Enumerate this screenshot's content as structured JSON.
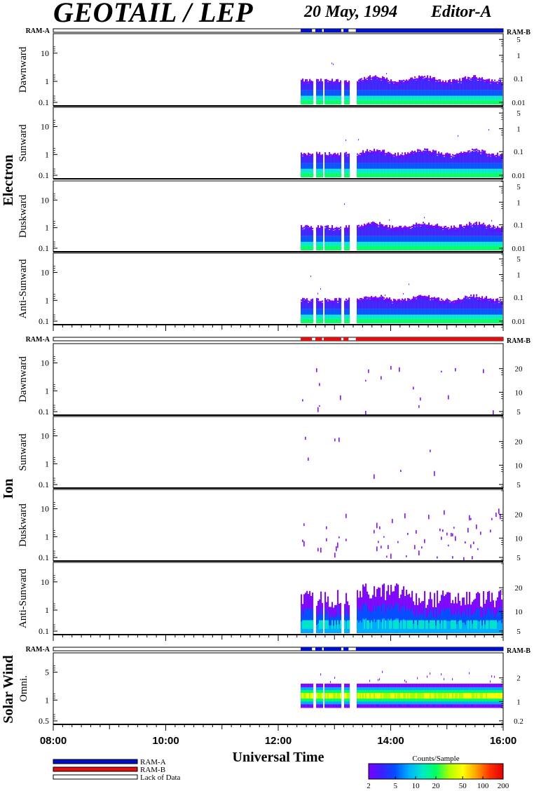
{
  "header": {
    "title": "GEOTAIL / LEP",
    "date": "20 May, 1994",
    "editor": "Editor-A"
  },
  "colors": {
    "ram_a": "#0010c8",
    "ram_b": "#e01010",
    "colorbar": [
      "#7a00ff",
      "#3a20ff",
      "#0050ff",
      "#00b0ff",
      "#00e8c8",
      "#00ff60",
      "#b0ff00",
      "#ffff00",
      "#ffa000",
      "#ff3000",
      "#e00000"
    ]
  },
  "chart_data": {
    "type": "heatmap",
    "xlabel": "Universal Time",
    "x_ticks": [
      "08:00",
      "10:00",
      "12:00",
      "14:00",
      "16:00"
    ],
    "x_range_hours": [
      8,
      16
    ],
    "data_start_hour": 12.4,
    "data_gaps_hours": [
      [
        12.6,
        12.66
      ],
      [
        12.78,
        12.81
      ],
      [
        13.12,
        13.16
      ],
      [
        13.25,
        13.38
      ]
    ],
    "groups": [
      {
        "name": "Electron",
        "ram_bar_labels": [
          "RAM-A",
          "RAM-B"
        ],
        "ram_mode": "RAM-A",
        "panels": [
          {
            "label": "Dawnward",
            "left_ticks": [
              "10",
              "1",
              "0.1"
            ],
            "right_ticks": [
              "5",
              "1",
              "0.1",
              "0.01"
            ],
            "intensity": "electron"
          },
          {
            "label": "Sunward",
            "left_ticks": [
              "10",
              "1",
              "0.1"
            ],
            "right_ticks": [
              "5",
              "1",
              "0.1",
              "0.01"
            ],
            "intensity": "electron"
          },
          {
            "label": "Duskward",
            "left_ticks": [
              "10",
              "1",
              "0.1"
            ],
            "right_ticks": [
              "5",
              "1",
              "0.1",
              "0.01"
            ],
            "intensity": "electron"
          },
          {
            "label": "Anti-Sunward",
            "left_ticks": [
              "10",
              "1",
              "0.1"
            ],
            "right_ticks": [
              "5",
              "1",
              "0.1",
              "0.01"
            ],
            "intensity": "electron"
          }
        ]
      },
      {
        "name": "Ion",
        "ram_bar_labels": [
          "RAM-A",
          "RAM-B"
        ],
        "ram_mode": "RAM-B",
        "panels": [
          {
            "label": "Dawnward",
            "left_ticks": [
              "10",
              "1",
              "0.1"
            ],
            "right_ticks": [
              "20",
              "10",
              "5"
            ],
            "intensity": "ion_sparse"
          },
          {
            "label": "Sunward",
            "left_ticks": [
              "10",
              "1",
              "0.1"
            ],
            "right_ticks": [
              "20",
              "10",
              "5"
            ],
            "intensity": "ion_sparser"
          },
          {
            "label": "Duskward",
            "left_ticks": [
              "10",
              "1",
              "0.1"
            ],
            "right_ticks": [
              "20",
              "10",
              "5"
            ],
            "intensity": "ion_medium"
          },
          {
            "label": "Anti-Sunward",
            "left_ticks": [
              "10",
              "1",
              "0.1"
            ],
            "right_ticks": [
              "20",
              "10",
              "5"
            ],
            "intensity": "ion_dense"
          }
        ]
      },
      {
        "name": "Solar Wind",
        "ram_bar_labels": [
          "RAM-A",
          "RAM-B"
        ],
        "ram_mode": "RAM-A",
        "panels": [
          {
            "label": "Omni.",
            "left_ticks": [
              "5",
              "1",
              "0.5"
            ],
            "right_ticks": [
              "2",
              "1",
              "0.2"
            ],
            "intensity": "solarwind"
          }
        ]
      }
    ],
    "legend": {
      "items": [
        {
          "label": "RAM-A",
          "color": "#0010c8"
        },
        {
          "label": "RAM-B",
          "color": "#e01010"
        },
        {
          "label": "Lack of Data",
          "color": "#ffffff"
        }
      ]
    },
    "colorbar": {
      "title": "Counts/Sample",
      "ticks": [
        "2",
        "5",
        "10",
        "20",
        "50",
        "100",
        "200"
      ],
      "range": [
        2,
        200
      ],
      "log": true
    }
  }
}
